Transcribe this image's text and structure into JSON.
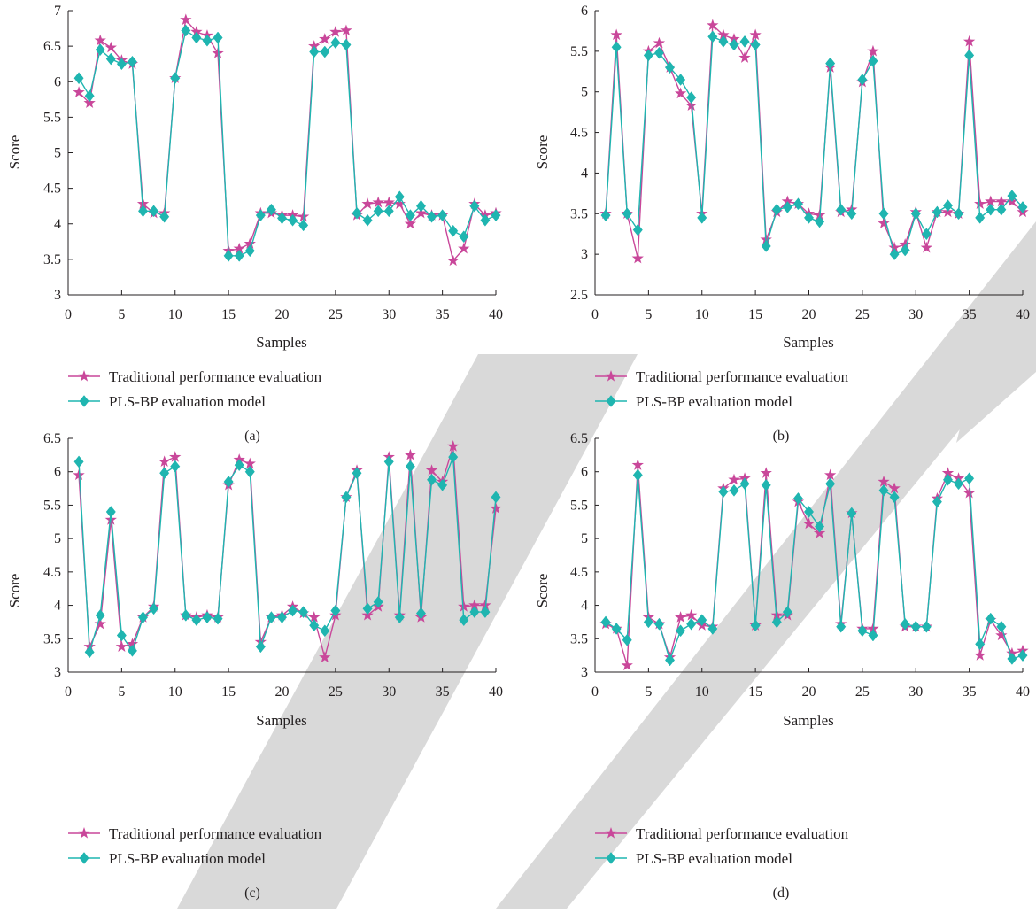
{
  "colors": {
    "traditional": "#c9479a",
    "pls_bp": "#1fb5b0",
    "watermark": "#d9d9d9",
    "axis": "#231f20"
  },
  "watermark_icon": "retracted-stamp-shape",
  "chart_data": [
    {
      "type": "line",
      "panel_label": "(a)",
      "xlabel": "Samples",
      "ylabel": "Score",
      "xlim": [
        0,
        40
      ],
      "ylim": [
        3,
        7
      ],
      "xticks": [
        0,
        5,
        10,
        15,
        20,
        25,
        30,
        35,
        40
      ],
      "yticks": [
        3,
        3.5,
        4,
        4.5,
        5,
        5.5,
        6,
        6.5,
        7
      ],
      "grid": false,
      "legend_position": "bottom-left",
      "x": [
        1,
        2,
        3,
        4,
        5,
        6,
        7,
        8,
        9,
        10,
        11,
        12,
        13,
        14,
        15,
        16,
        17,
        18,
        19,
        20,
        21,
        22,
        23,
        24,
        25,
        26,
        27,
        28,
        29,
        30,
        31,
        32,
        33,
        34,
        35,
        36,
        37,
        38,
        39,
        40
      ],
      "series": [
        {
          "name": "Traditional performance evaluation",
          "marker": "star",
          "values": [
            5.85,
            5.7,
            6.58,
            6.48,
            6.3,
            6.25,
            4.28,
            4.15,
            4.15,
            6.05,
            6.87,
            6.7,
            6.65,
            6.4,
            3.62,
            3.65,
            3.72,
            4.15,
            4.15,
            4.12,
            4.12,
            4.1,
            6.5,
            6.6,
            6.7,
            6.72,
            4.12,
            4.28,
            4.3,
            4.3,
            4.28,
            4.0,
            4.15,
            4.12,
            4.12,
            3.48,
            3.65,
            4.28,
            4.12,
            4.15
          ]
        },
        {
          "name": "PLS-BP evaluation model",
          "marker": "diamond",
          "values": [
            6.05,
            5.8,
            6.45,
            6.32,
            6.25,
            6.28,
            4.18,
            4.18,
            4.1,
            6.05,
            6.72,
            6.62,
            6.58,
            6.62,
            3.55,
            3.55,
            3.62,
            4.12,
            4.2,
            4.08,
            4.05,
            3.98,
            6.42,
            6.42,
            6.55,
            6.52,
            4.15,
            4.05,
            4.18,
            4.18,
            4.38,
            4.12,
            4.25,
            4.1,
            4.12,
            3.9,
            3.82,
            4.25,
            4.05,
            4.12
          ]
        }
      ]
    },
    {
      "type": "line",
      "panel_label": "(b)",
      "xlabel": "Samples",
      "ylabel": "Score",
      "xlim": [
        0,
        40
      ],
      "ylim": [
        2.5,
        6
      ],
      "xticks": [
        0,
        5,
        10,
        15,
        20,
        25,
        30,
        35,
        40
      ],
      "yticks": [
        2.5,
        3,
        3.5,
        4,
        4.5,
        5,
        5.5,
        6
      ],
      "grid": false,
      "legend_position": "bottom-left",
      "x": [
        1,
        2,
        3,
        4,
        5,
        6,
        7,
        8,
        9,
        10,
        11,
        12,
        13,
        14,
        15,
        16,
        17,
        18,
        19,
        20,
        21,
        22,
        23,
        24,
        25,
        26,
        27,
        28,
        29,
        30,
        31,
        32,
        33,
        34,
        35,
        36,
        37,
        38,
        39,
        40
      ],
      "series": [
        {
          "name": "Traditional performance evaluation",
          "marker": "star",
          "values": [
            3.5,
            5.7,
            3.5,
            2.95,
            5.5,
            5.6,
            5.3,
            4.98,
            4.83,
            3.5,
            5.82,
            5.7,
            5.65,
            5.42,
            5.7,
            3.18,
            3.52,
            3.65,
            3.62,
            3.5,
            3.48,
            5.3,
            3.52,
            3.55,
            5.12,
            5.5,
            3.38,
            3.08,
            3.12,
            3.52,
            3.08,
            3.52,
            3.52,
            3.5,
            5.62,
            3.62,
            3.65,
            3.65,
            3.65,
            3.52
          ]
        },
        {
          "name": "PLS-BP evaluation model",
          "marker": "diamond",
          "values": [
            3.48,
            5.55,
            3.5,
            3.3,
            5.45,
            5.48,
            5.3,
            5.15,
            4.93,
            3.45,
            5.68,
            5.62,
            5.58,
            5.62,
            5.58,
            3.1,
            3.55,
            3.58,
            3.62,
            3.45,
            3.4,
            5.35,
            3.55,
            3.5,
            5.15,
            5.38,
            3.5,
            3.0,
            3.05,
            3.5,
            3.25,
            3.52,
            3.6,
            3.5,
            5.45,
            3.45,
            3.55,
            3.55,
            3.72,
            3.58
          ]
        }
      ]
    },
    {
      "type": "line",
      "panel_label": "(c)",
      "xlabel": "Samples",
      "ylabel": "Score",
      "xlim": [
        0,
        40
      ],
      "ylim": [
        3,
        6.5
      ],
      "xticks": [
        0,
        5,
        10,
        15,
        20,
        25,
        30,
        35,
        40
      ],
      "yticks": [
        3,
        3.5,
        4,
        4.5,
        5,
        5.5,
        6,
        6.5
      ],
      "grid": false,
      "legend_position": "bottom-left",
      "x": [
        1,
        2,
        3,
        4,
        5,
        6,
        7,
        8,
        9,
        10,
        11,
        12,
        13,
        14,
        15,
        16,
        17,
        18,
        19,
        20,
        21,
        22,
        23,
        24,
        25,
        26,
        27,
        28,
        29,
        30,
        31,
        32,
        33,
        34,
        35,
        36,
        37,
        38,
        39,
        40
      ],
      "series": [
        {
          "name": "Traditional performance evaluation",
          "marker": "star",
          "values": [
            5.95,
            3.38,
            3.72,
            5.28,
            3.38,
            3.42,
            3.82,
            3.98,
            6.15,
            6.22,
            3.85,
            3.82,
            3.85,
            3.82,
            5.8,
            6.18,
            6.12,
            3.45,
            3.82,
            3.85,
            3.98,
            3.88,
            3.82,
            3.22,
            3.85,
            5.62,
            6.02,
            3.85,
            3.98,
            6.22,
            3.85,
            6.25,
            3.82,
            6.02,
            5.85,
            6.38,
            3.98,
            4.0,
            4.0,
            5.45
          ]
        },
        {
          "name": "PLS-BP evaluation model",
          "marker": "diamond",
          "values": [
            6.15,
            3.3,
            3.85,
            5.4,
            3.55,
            3.32,
            3.82,
            3.95,
            5.98,
            6.08,
            3.85,
            3.78,
            3.82,
            3.8,
            5.85,
            6.1,
            6.0,
            3.38,
            3.82,
            3.82,
            3.92,
            3.9,
            3.7,
            3.62,
            3.92,
            5.62,
            5.98,
            3.95,
            4.05,
            6.15,
            3.82,
            6.08,
            3.88,
            5.88,
            5.8,
            6.22,
            3.78,
            3.9,
            3.9,
            5.62
          ]
        }
      ]
    },
    {
      "type": "line",
      "panel_label": "(d)",
      "xlabel": "Samples",
      "ylabel": "Score",
      "xlim": [
        0,
        40
      ],
      "ylim": [
        3,
        6.5
      ],
      "xticks": [
        0,
        5,
        10,
        15,
        20,
        25,
        30,
        35,
        40
      ],
      "yticks": [
        3,
        3.5,
        4,
        4.5,
        5,
        5.5,
        6,
        6.5
      ],
      "grid": false,
      "legend_position": "bottom-left",
      "x": [
        1,
        2,
        3,
        4,
        5,
        6,
        7,
        8,
        9,
        10,
        11,
        12,
        13,
        14,
        15,
        16,
        17,
        18,
        19,
        20,
        21,
        22,
        23,
        24,
        25,
        26,
        27,
        28,
        29,
        30,
        31,
        32,
        33,
        34,
        35,
        36,
        37,
        38,
        39,
        40
      ],
      "series": [
        {
          "name": "Traditional performance evaluation",
          "marker": "star",
          "values": [
            3.72,
            3.65,
            3.1,
            6.1,
            3.82,
            3.72,
            3.22,
            3.82,
            3.85,
            3.7,
            3.68,
            5.75,
            5.88,
            5.9,
            3.7,
            5.98,
            3.85,
            3.85,
            5.55,
            5.22,
            5.08,
            5.95,
            3.72,
            5.38,
            3.65,
            3.65,
            5.85,
            5.75,
            3.68,
            3.68,
            3.68,
            5.6,
            5.98,
            5.9,
            5.68,
            3.25,
            3.78,
            3.55,
            3.28,
            3.32
          ]
        },
        {
          "name": "PLS-BP evaluation model",
          "marker": "diamond",
          "values": [
            3.75,
            3.65,
            3.48,
            5.95,
            3.75,
            3.72,
            3.18,
            3.62,
            3.72,
            3.78,
            3.65,
            5.7,
            5.72,
            5.82,
            3.7,
            5.8,
            3.75,
            3.9,
            5.6,
            5.4,
            5.18,
            5.82,
            3.68,
            5.38,
            3.62,
            3.55,
            5.72,
            5.62,
            3.72,
            3.68,
            3.68,
            5.55,
            5.88,
            5.82,
            5.9,
            3.42,
            3.8,
            3.68,
            3.2,
            3.25
          ]
        }
      ]
    }
  ]
}
